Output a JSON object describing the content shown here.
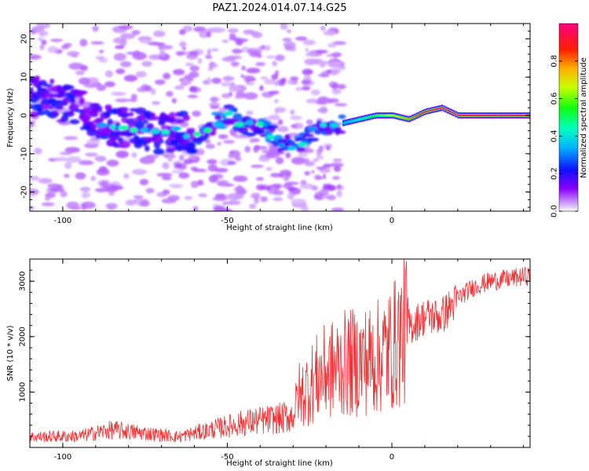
{
  "figure": {
    "title": "PAZ1.2024.014.07.14.G25"
  },
  "chart_data": [
    {
      "type": "heatmap",
      "xlabel": "Height of straight line (km)",
      "ylabel": "Frequency (Hz)",
      "xlim": [
        -110,
        42
      ],
      "ylim": [
        -25,
        24
      ],
      "x_ticks": [
        -100,
        -50,
        0
      ],
      "y_ticks": [
        -20,
        -10,
        0,
        10,
        20
      ],
      "colorbar": {
        "label": "Normalized spectral amplitude",
        "range": [
          0,
          1
        ],
        "ticks": [
          0.0,
          0.2,
          0.4,
          0.6,
          0.8
        ],
        "colormap": "gist_rainbow_reversed"
      },
      "ridge": {
        "description_points": [
          {
            "x": -105,
            "y": 5
          },
          {
            "x": -100,
            "y": 3
          },
          {
            "x": -95,
            "y": 2
          },
          {
            "x": -90,
            "y": -2
          },
          {
            "x": -85,
            "y": -3
          },
          {
            "x": -80,
            "y": -3
          },
          {
            "x": -75,
            "y": -4
          },
          {
            "x": -70,
            "y": -5
          },
          {
            "x": -65,
            "y": -4
          },
          {
            "x": -60,
            "y": -5
          },
          {
            "x": -55,
            "y": -3
          },
          {
            "x": -50,
            "y": 0
          },
          {
            "x": -45,
            "y": -2
          },
          {
            "x": -40,
            "y": -3
          },
          {
            "x": -35,
            "y": -6
          },
          {
            "x": -30,
            "y": -9
          },
          {
            "x": -25,
            "y": -5
          },
          {
            "x": -20,
            "y": -2
          },
          {
            "x": -15,
            "y": -2
          },
          {
            "x": -10,
            "y": -1
          },
          {
            "x": -5,
            "y": 0
          },
          {
            "x": 0,
            "y": 0
          },
          {
            "x": 5,
            "y": -1
          },
          {
            "x": 10,
            "y": 1
          },
          {
            "x": 15,
            "y": 2
          },
          {
            "x": 20,
            "y": 0
          },
          {
            "x": 30,
            "y": 0
          },
          {
            "x": 42,
            "y": 0
          }
        ]
      }
    },
    {
      "type": "line",
      "xlabel": "Height of straight line (km)",
      "ylabel": "SNR (10 * v/v)",
      "xlim": [
        -110,
        42
      ],
      "ylim": [
        0,
        3400
      ],
      "x_ticks": [
        -100,
        -50,
        0
      ],
      "y_ticks": [
        1000,
        2000,
        3000
      ],
      "series": [
        {
          "color": "#ee3333",
          "envelope": [
            {
              "x": -110,
              "y": 150
            },
            {
              "x": -95,
              "y": 160
            },
            {
              "x": -85,
              "y": 250
            },
            {
              "x": -75,
              "y": 200
            },
            {
              "x": -65,
              "y": 150
            },
            {
              "x": -55,
              "y": 250
            },
            {
              "x": -45,
              "y": 350
            },
            {
              "x": -35,
              "y": 400
            },
            {
              "x": -30,
              "y": 450
            },
            {
              "x": -27,
              "y": 1000
            },
            {
              "x": -22,
              "y": 1300
            },
            {
              "x": -15,
              "y": 1500
            },
            {
              "x": -5,
              "y": 1600
            },
            {
              "x": 0,
              "y": 1800
            },
            {
              "x": 5,
              "y": 2200
            },
            {
              "x": 10,
              "y": 2400
            },
            {
              "x": 15,
              "y": 2400
            },
            {
              "x": 20,
              "y": 2700
            },
            {
              "x": 25,
              "y": 2900
            },
            {
              "x": 30,
              "y": 3000
            },
            {
              "x": 42,
              "y": 3100
            }
          ]
        }
      ]
    }
  ]
}
